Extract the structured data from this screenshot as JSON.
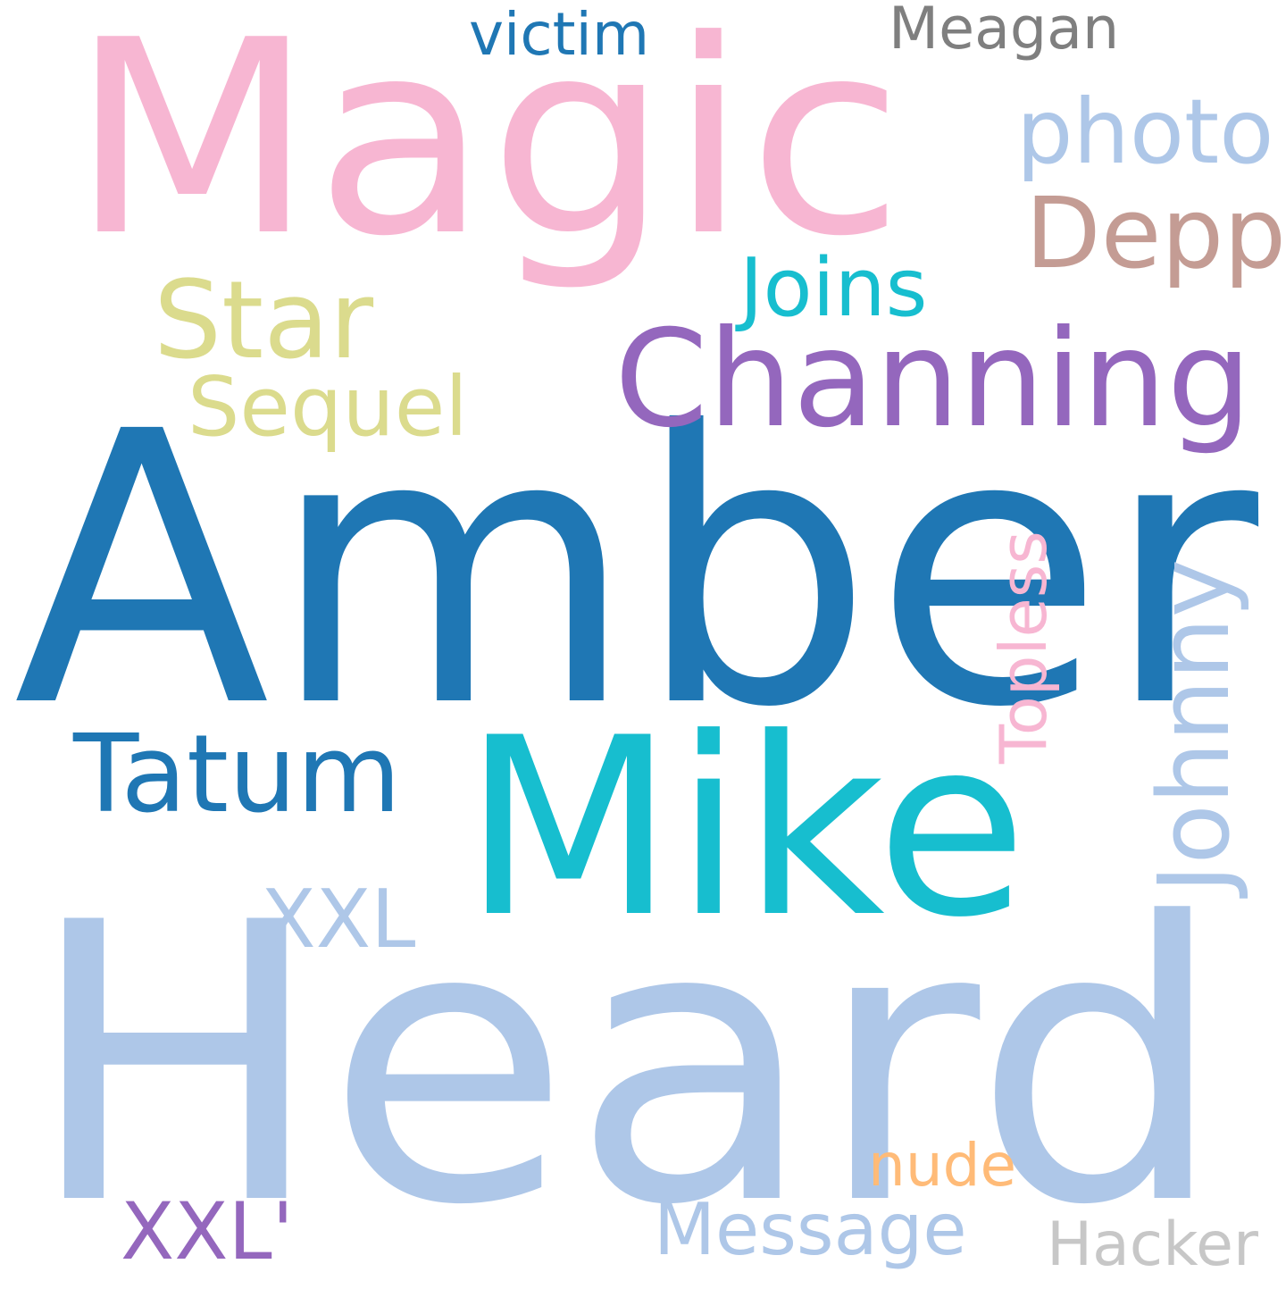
{
  "words": [
    {
      "id": "amber",
      "text": "Amber",
      "color": "#1f77b4",
      "rotated": false
    },
    {
      "id": "heard",
      "text": "Heard",
      "color": "#aec7e8",
      "rotated": false
    },
    {
      "id": "magic",
      "text": "Magic",
      "color": "#f7b6d2",
      "rotated": false
    },
    {
      "id": "mike",
      "text": "Mike",
      "color": "#17becf",
      "rotated": false
    },
    {
      "id": "channing",
      "text": "Channing",
      "color": "#9467bd",
      "rotated": false
    },
    {
      "id": "star",
      "text": "Star",
      "color": "#dbdb8d",
      "rotated": false
    },
    {
      "id": "tatum",
      "text": "Tatum",
      "color": "#1f77b4",
      "rotated": false
    },
    {
      "id": "depp",
      "text": "Depp",
      "color": "#c49c94",
      "rotated": false
    },
    {
      "id": "joins",
      "text": "Joins",
      "color": "#17becf",
      "rotated": false
    },
    {
      "id": "sequel",
      "text": "Sequel",
      "color": "#dbdb8d",
      "rotated": false
    },
    {
      "id": "photo",
      "text": "photo",
      "color": "#aec7e8",
      "rotated": false
    },
    {
      "id": "johnny",
      "text": "Johnny",
      "color": "#aec7e8",
      "rotated": true
    },
    {
      "id": "topless",
      "text": "Topless",
      "color": "#f7b6d2",
      "rotated": true
    },
    {
      "id": "xxl",
      "text": "XXL",
      "color": "#aec7e8",
      "rotated": false
    },
    {
      "id": "xxl-quote",
      "text": "XXL'",
      "color": "#9467bd",
      "rotated": false
    },
    {
      "id": "victim",
      "text": "victim",
      "color": "#1f77b4",
      "rotated": false
    },
    {
      "id": "meagan",
      "text": "Meagan",
      "color": "#7f7f7f",
      "rotated": false
    },
    {
      "id": "message",
      "text": "Message",
      "color": "#aec7e8",
      "rotated": false
    },
    {
      "id": "nude",
      "text": "nude",
      "color": "#ffbb78",
      "rotated": false
    },
    {
      "id": "hacker",
      "text": "Hacker",
      "color": "#c7c7c7",
      "rotated": false
    }
  ]
}
